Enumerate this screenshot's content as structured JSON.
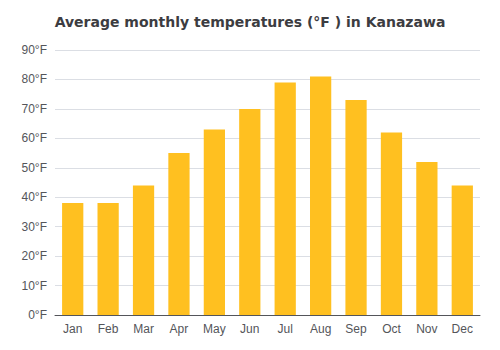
{
  "chart_data": {
    "type": "bar",
    "title": "Average monthly temperatures (°F ) in Kanazawa",
    "categories": [
      "Jan",
      "Feb",
      "Mar",
      "Apr",
      "May",
      "Jun",
      "Jul",
      "Aug",
      "Sep",
      "Oct",
      "Nov",
      "Dec"
    ],
    "values": [
      38,
      38,
      44,
      55,
      63,
      70,
      79,
      81,
      73,
      62,
      52,
      44
    ],
    "color": "#FFC020",
    "ylim": [
      0,
      90
    ],
    "yticks": [
      {
        "value": 0,
        "label": "0°F"
      },
      {
        "value": 10,
        "label": "10°F"
      },
      {
        "value": 20,
        "label": "20°F"
      },
      {
        "value": 30,
        "label": "30°F"
      },
      {
        "value": 40,
        "label": "40°F"
      },
      {
        "value": 50,
        "label": "50°F"
      },
      {
        "value": 60,
        "label": "60°F"
      },
      {
        "value": 70,
        "label": "70°F"
      },
      {
        "value": 80,
        "label": "80°F"
      },
      {
        "value": 90,
        "label": "90°F"
      }
    ],
    "grid": true
  }
}
